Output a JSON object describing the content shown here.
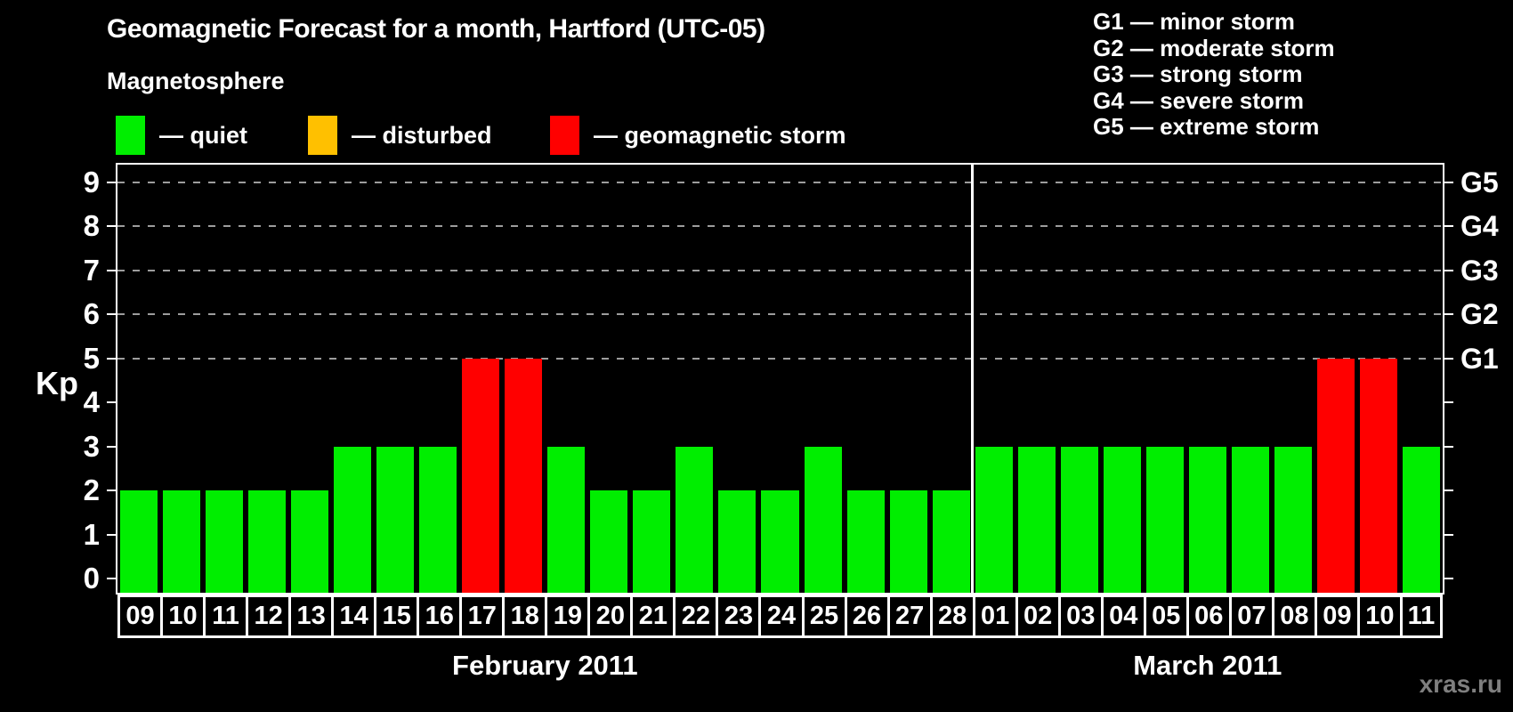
{
  "subtitle": "Magnetosphere",
  "legend": {
    "items": [
      {
        "label": "— quiet",
        "color": "#00ee00"
      },
      {
        "label": "— disturbed",
        "color": "#ffc000"
      },
      {
        "label": "— geomagnetic storm",
        "color": "#ff0000"
      }
    ]
  },
  "g_legend": {
    "items": [
      "G1 — minor storm",
      "G2 — moderate storm",
      "G3 — strong storm",
      "G4 — severe storm",
      "G5 — extreme storm"
    ]
  },
  "watermark": "xras.ru",
  "chart_data": {
    "type": "bar",
    "title": "Geomagnetic Forecast for a month, Hartford (UTC-05)",
    "ylabel": "Kp",
    "ylim": [
      0,
      9.4
    ],
    "yticks": [
      0,
      1,
      2,
      3,
      4,
      5,
      6,
      7,
      8,
      9
    ],
    "gridlines": [
      5,
      6,
      7,
      8,
      9
    ],
    "grid_on": true,
    "right_axis": [
      {
        "value": 5,
        "label": "G1"
      },
      {
        "value": 6,
        "label": "G2"
      },
      {
        "value": 7,
        "label": "G3"
      },
      {
        "value": 8,
        "label": "G4"
      },
      {
        "value": 9,
        "label": "G5"
      }
    ],
    "bar_colors": {
      "quiet": "#00ee00",
      "disturbed": "#ffc000",
      "storm": "#ff0000"
    },
    "months": [
      {
        "label": "February 2011",
        "days": [
          {
            "day": "09",
            "kp": 2,
            "status": "quiet"
          },
          {
            "day": "10",
            "kp": 2,
            "status": "quiet"
          },
          {
            "day": "11",
            "kp": 2,
            "status": "quiet"
          },
          {
            "day": "12",
            "kp": 2,
            "status": "quiet"
          },
          {
            "day": "13",
            "kp": 2,
            "status": "quiet"
          },
          {
            "day": "14",
            "kp": 3,
            "status": "quiet"
          },
          {
            "day": "15",
            "kp": 3,
            "status": "quiet"
          },
          {
            "day": "16",
            "kp": 3,
            "status": "quiet"
          },
          {
            "day": "17",
            "kp": 5,
            "status": "storm"
          },
          {
            "day": "18",
            "kp": 5,
            "status": "storm"
          },
          {
            "day": "19",
            "kp": 3,
            "status": "quiet"
          },
          {
            "day": "20",
            "kp": 2,
            "status": "quiet"
          },
          {
            "day": "21",
            "kp": 2,
            "status": "quiet"
          },
          {
            "day": "22",
            "kp": 3,
            "status": "quiet"
          },
          {
            "day": "23",
            "kp": 2,
            "status": "quiet"
          },
          {
            "day": "24",
            "kp": 2,
            "status": "quiet"
          },
          {
            "day": "25",
            "kp": 3,
            "status": "quiet"
          },
          {
            "day": "26",
            "kp": 2,
            "status": "quiet"
          },
          {
            "day": "27",
            "kp": 2,
            "status": "quiet"
          },
          {
            "day": "28",
            "kp": 2,
            "status": "quiet"
          }
        ]
      },
      {
        "label": "March 2011",
        "days": [
          {
            "day": "01",
            "kp": 3,
            "status": "quiet"
          },
          {
            "day": "02",
            "kp": 3,
            "status": "quiet"
          },
          {
            "day": "03",
            "kp": 3,
            "status": "quiet"
          },
          {
            "day": "04",
            "kp": 3,
            "status": "quiet"
          },
          {
            "day": "05",
            "kp": 3,
            "status": "quiet"
          },
          {
            "day": "06",
            "kp": 3,
            "status": "quiet"
          },
          {
            "day": "07",
            "kp": 3,
            "status": "quiet"
          },
          {
            "day": "08",
            "kp": 3,
            "status": "quiet"
          },
          {
            "day": "09",
            "kp": 5,
            "status": "storm"
          },
          {
            "day": "10",
            "kp": 5,
            "status": "storm"
          },
          {
            "day": "11",
            "kp": 3,
            "status": "quiet"
          }
        ]
      }
    ]
  }
}
